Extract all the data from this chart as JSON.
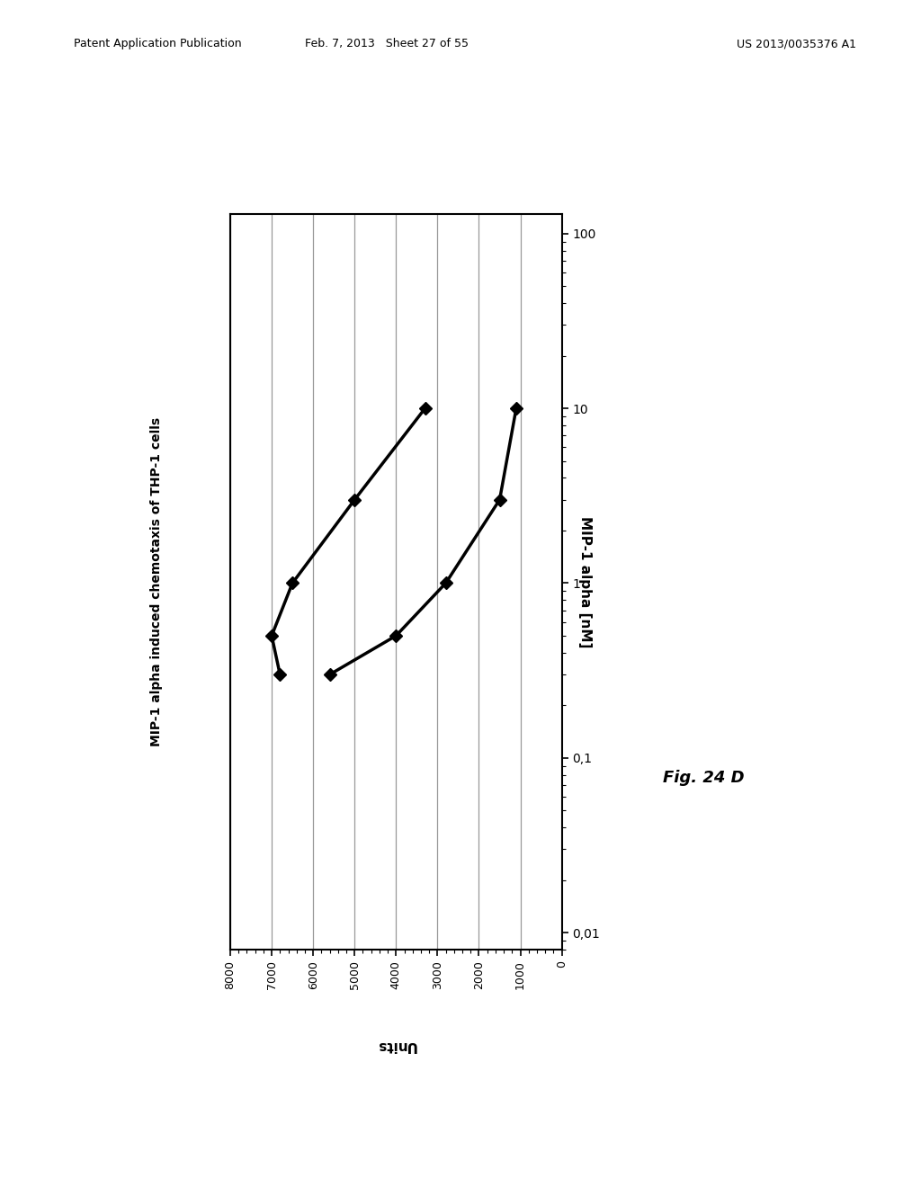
{
  "title": "MIP-1 alpha induced chemotaxis of THP-1 cells",
  "xlabel_bottom": "Units",
  "ylabel_right": "MIP-1 alpha [nM]",
  "fig_label": "Fig. 24 D",
  "header_left": "Patent Application Publication",
  "header_center": "Feb. 7, 2013   Sheet 27 of 55",
  "header_right": "US 2013/0035376 A1",
  "curve1_units": [
    6800,
    7000,
    6500,
    5000,
    3300
  ],
  "curve1_conc": [
    0.3,
    0.5,
    1.0,
    3.0,
    10.0
  ],
  "curve2_units": [
    5600,
    4000,
    2800,
    1500,
    1100
  ],
  "curve2_conc": [
    0.3,
    0.5,
    1.0,
    3.0,
    10.0
  ],
  "x_ticks": [
    0,
    1000,
    2000,
    3000,
    4000,
    5000,
    6000,
    7000,
    8000
  ],
  "x_lim": [
    0,
    8000
  ],
  "y_ticks_log": [
    0.01,
    0.1,
    1,
    10,
    100
  ],
  "y_tick_labels": [
    "0,01",
    "0,1",
    "1",
    "10",
    "100"
  ],
  "background_color": "#ffffff",
  "line_color": "#000000",
  "grid_color": "#999999"
}
